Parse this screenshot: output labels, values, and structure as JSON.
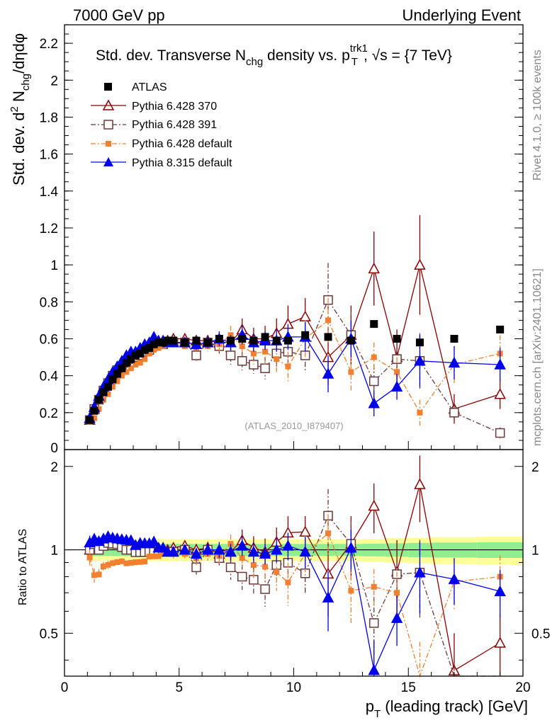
{
  "header": {
    "left": "7000 GeV pp",
    "right": "Underlying Event"
  },
  "side": {
    "rivet": "Rivet 4.1.0, ≥ 100k events",
    "mcplots": "mcplots.cern.ch [arXiv:2401.10621]"
  },
  "title": {
    "main": "Std. dev. Transverse N",
    "sub": "chg",
    "mid": " density vs. p",
    "sup": "trk1",
    "subT": "T",
    "tail": ", √s = {7 TeV}"
  },
  "ylabel_top": {
    "a": "Std. dev. d",
    "sup2": "2",
    "b": " N",
    "sub": "chg",
    "c": "/dηdφ"
  },
  "ylabel_bottom": "Ratio to ATLAS",
  "xlabel": {
    "p": "p",
    "sub": "T",
    "rest": " (leading track) [GeV]"
  },
  "watermark": "(ATLAS_2010_I879407)",
  "colors": {
    "atlas": "#000000",
    "p370": "#8b0000",
    "p391": "#6b3a3a",
    "p6def": "#f28030",
    "p8": "#0000ee",
    "band_in": "#90ee90",
    "band_out": "#ffff99"
  },
  "chart_data": {
    "type": "scatter",
    "xlim": [
      0,
      20
    ],
    "ylim_top": [
      0,
      2.3
    ],
    "ylim_ratio": [
      0.35,
      2.3
    ],
    "x_ticks": [
      "0",
      "5",
      "10",
      "15",
      "20"
    ],
    "y_ticks_top": [
      "0.2",
      "0.4",
      "0.6",
      "0.8",
      "1",
      "1.2",
      "1.4",
      "1.6",
      "1.8",
      "2",
      "2.2"
    ],
    "y_ticks_ratio": [
      "0.5",
      "1",
      "2"
    ],
    "x": [
      1.1,
      1.3,
      1.5,
      1.7,
      1.9,
      2.1,
      2.3,
      2.5,
      2.7,
      2.9,
      3.1,
      3.3,
      3.5,
      3.7,
      3.9,
      4.1,
      4.3,
      4.5,
      4.75,
      5.25,
      5.75,
      6.25,
      6.75,
      7.25,
      7.75,
      8.25,
      8.75,
      9.25,
      9.75,
      10.5,
      11.5,
      12.5,
      13.5,
      14.5,
      15.5,
      17,
      19
    ],
    "series": [
      {
        "name": "ATLAS",
        "key": "atlas",
        "values": [
          0.16,
          0.21,
          0.27,
          0.31,
          0.34,
          0.38,
          0.41,
          0.44,
          0.47,
          0.49,
          0.51,
          0.52,
          0.54,
          0.55,
          0.57,
          0.58,
          0.58,
          0.59,
          0.59,
          0.58,
          0.59,
          0.58,
          0.6,
          0.59,
          0.6,
          0.59,
          0.61,
          0.59,
          0.59,
          0.62,
          0.61,
          0.59,
          0.68,
          0.6,
          0.58,
          0.6,
          0.65
        ]
      },
      {
        "name": "Pythia 6.428 370",
        "key": "p370",
        "values": [
          0.16,
          0.22,
          0.28,
          0.33,
          0.37,
          0.41,
          0.44,
          0.47,
          0.5,
          0.51,
          0.52,
          0.53,
          0.55,
          0.56,
          0.57,
          0.58,
          0.58,
          0.59,
          0.6,
          0.6,
          0.59,
          0.59,
          0.58,
          0.58,
          0.65,
          0.6,
          0.6,
          0.63,
          0.68,
          0.72,
          0.5,
          0.62,
          0.98,
          0.5,
          1.0,
          0.22,
          0.3
        ],
        "err": [
          0.01,
          0.01,
          0.01,
          0.01,
          0.01,
          0.01,
          0.01,
          0.01,
          0.01,
          0.01,
          0.01,
          0.01,
          0.01,
          0.01,
          0.01,
          0.01,
          0.01,
          0.01,
          0.02,
          0.02,
          0.03,
          0.03,
          0.04,
          0.05,
          0.06,
          0.06,
          0.07,
          0.08,
          0.1,
          0.1,
          0.15,
          0.16,
          0.2,
          0.15,
          0.27,
          0.08,
          0.08
        ]
      },
      {
        "name": "Pythia 6.428 391",
        "key": "p391",
        "values": [
          0.16,
          0.22,
          0.27,
          0.32,
          0.36,
          0.4,
          0.43,
          0.45,
          0.47,
          0.49,
          0.5,
          0.51,
          0.53,
          0.54,
          0.56,
          0.57,
          0.57,
          0.58,
          0.58,
          0.58,
          0.51,
          0.58,
          0.56,
          0.51,
          0.48,
          0.46,
          0.44,
          0.52,
          0.53,
          0.51,
          0.81,
          0.62,
          0.37,
          0.49,
          0.48,
          0.2,
          0.09
        ],
        "err": [
          0.01,
          0.01,
          0.01,
          0.01,
          0.01,
          0.01,
          0.01,
          0.01,
          0.01,
          0.01,
          0.01,
          0.01,
          0.01,
          0.01,
          0.01,
          0.01,
          0.01,
          0.01,
          0.02,
          0.02,
          0.03,
          0.03,
          0.04,
          0.05,
          0.05,
          0.05,
          0.06,
          0.07,
          0.07,
          0.08,
          0.2,
          0.13,
          0.09,
          0.1,
          0.15,
          0.05,
          0.03
        ]
      },
      {
        "name": "Pythia 6.428 default",
        "key": "p6def",
        "values": [
          0.15,
          0.17,
          0.22,
          0.27,
          0.3,
          0.34,
          0.37,
          0.4,
          0.42,
          0.44,
          0.46,
          0.47,
          0.49,
          0.52,
          0.54,
          0.55,
          0.56,
          0.57,
          0.57,
          0.56,
          0.55,
          0.56,
          0.57,
          0.62,
          0.56,
          0.52,
          0.53,
          0.49,
          0.45,
          0.6,
          0.7,
          0.42,
          0.5,
          0.42,
          0.2,
          0.46,
          0.52
        ],
        "err": [
          0.01,
          0.01,
          0.01,
          0.01,
          0.01,
          0.01,
          0.01,
          0.01,
          0.01,
          0.01,
          0.01,
          0.01,
          0.01,
          0.01,
          0.01,
          0.01,
          0.01,
          0.01,
          0.02,
          0.02,
          0.03,
          0.03,
          0.04,
          0.05,
          0.05,
          0.06,
          0.07,
          0.07,
          0.08,
          0.1,
          0.12,
          0.1,
          0.08,
          0.08,
          0.07,
          0.1,
          0.1
        ]
      },
      {
        "name": "Pythia 8.315 default",
        "key": "p8",
        "values": [
          0.17,
          0.23,
          0.29,
          0.34,
          0.38,
          0.42,
          0.45,
          0.48,
          0.51,
          0.53,
          0.53,
          0.55,
          0.57,
          0.58,
          0.61,
          0.59,
          0.59,
          0.58,
          0.58,
          0.58,
          0.57,
          0.58,
          0.6,
          0.58,
          0.62,
          0.58,
          0.59,
          0.59,
          0.61,
          0.61,
          0.41,
          0.6,
          0.25,
          0.34,
          0.48,
          0.47,
          0.46
        ],
        "err": [
          0.01,
          0.01,
          0.01,
          0.01,
          0.01,
          0.01,
          0.01,
          0.01,
          0.01,
          0.01,
          0.01,
          0.01,
          0.01,
          0.01,
          0.01,
          0.01,
          0.01,
          0.01,
          0.02,
          0.02,
          0.03,
          0.03,
          0.04,
          0.04,
          0.05,
          0.05,
          0.05,
          0.06,
          0.07,
          0.08,
          0.1,
          0.1,
          0.07,
          0.07,
          0.14,
          0.09,
          0.09
        ]
      }
    ],
    "band": {
      "x_edges": [
        1,
        2,
        3,
        4,
        5,
        6,
        7,
        8,
        9,
        10,
        11,
        12,
        13,
        14,
        15,
        16,
        18,
        20
      ],
      "inner": 0.05,
      "outer": 0.09
    }
  }
}
